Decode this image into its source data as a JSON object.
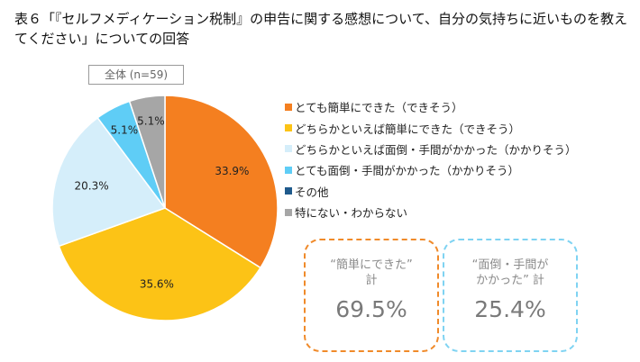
{
  "title": "表６「『セルフメディケーション税制』の申告に関する感想について、自分の気持ちに近いものを教えてください」についての回答",
  "chart_data": {
    "type": "pie",
    "subset_label": "全体 (n=59)",
    "slices": [
      {
        "label": "とても簡単にできた（できそう）",
        "value": 33.9,
        "value_label": "33.9%",
        "color": "#f47f20"
      },
      {
        "label": "どちらかといえば簡単にできた（できそう）",
        "value": 35.6,
        "value_label": "35.6%",
        "color": "#fcc316"
      },
      {
        "label": "どちらかといえば面倒・手間がかかった（かかりそう）",
        "value": 20.3,
        "value_label": "20.3%",
        "color": "#d5eefa"
      },
      {
        "label": "とても面倒・手間がかかった（かかりそう）",
        "value": 5.1,
        "value_label": "5.1%",
        "color": "#5fcdf6"
      },
      {
        "label": "その他",
        "value": 0,
        "value_label": "",
        "color": "#1f5a8c"
      },
      {
        "label": "特にない・わからない",
        "value": 5.1,
        "value_label": "5.1%",
        "color": "#a6a6a6"
      }
    ],
    "legend_position": "right",
    "summary": [
      {
        "label_line1": "“簡単にできた”",
        "label_line2": "計",
        "value": "69.5%",
        "color": "#f08a2a"
      },
      {
        "label_line1": "“面倒・手間が",
        "label_line2": "かかった” 計",
        "value": "25.4%",
        "color": "#7fd3f2"
      }
    ]
  }
}
